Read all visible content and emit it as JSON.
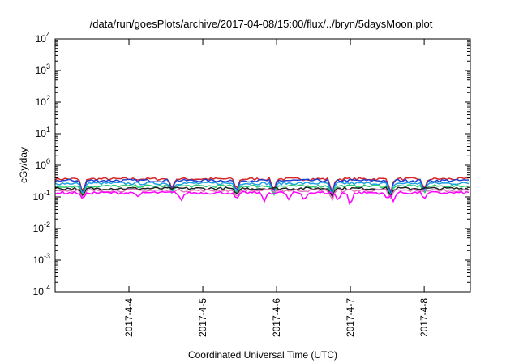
{
  "chart_data": {
    "type": "line",
    "title": "/data/run/goesPlots/archive/2017-04-08/15:00/flux/../bryn/5daysMoon.plot",
    "xlabel": "Coordinated Universal Time (UTC)",
    "ylabel": "cGy/day",
    "yscale": "log",
    "ylim": [
      0.0001,
      10000
    ],
    "y_ticks": [
      {
        "base": "10",
        "exp": "-4"
      },
      {
        "base": "10",
        "exp": "-3"
      },
      {
        "base": "10",
        "exp": "-2"
      },
      {
        "base": "10",
        "exp": "-1"
      },
      {
        "base": "10",
        "exp": "0"
      },
      {
        "base": "10",
        "exp": "1"
      },
      {
        "base": "10",
        "exp": "2"
      },
      {
        "base": "10",
        "exp": "3"
      },
      {
        "base": "10",
        "exp": "4"
      }
    ],
    "xlim": [
      "2017-04-03 00:00",
      "2017-04-08 15:00"
    ],
    "x_tick_labels": [
      "2017-4-4",
      "2017-4-5",
      "2017-4-6",
      "2017-4-7",
      "2017-4-8"
    ],
    "x_ticks": [
      "2017-04-04",
      "2017-04-05",
      "2017-04-06",
      "2017-04-07",
      "2017-04-08"
    ],
    "grid": false,
    "legend": "none",
    "series": [
      {
        "color": "#d62728",
        "baseline": 0.37,
        "dips": [
          {
            "x": "2017-04-03 09:00",
            "y": 0.1
          },
          {
            "x": "2017-04-04 14:00",
            "y": 0.18
          },
          {
            "x": "2017-04-05 11:00",
            "y": 0.14
          },
          {
            "x": "2017-04-05 23:00",
            "y": 0.13
          },
          {
            "x": "2017-04-06 18:00",
            "y": 0.1
          },
          {
            "x": "2017-04-07 13:00",
            "y": 0.11
          },
          {
            "x": "2017-04-08 00:00",
            "y": 0.15
          }
        ]
      },
      {
        "color": "#1f3fcf",
        "baseline": 0.33,
        "dips": [
          {
            "x": "2017-04-03 09:00",
            "y": 0.09
          },
          {
            "x": "2017-04-04 14:00",
            "y": 0.16
          },
          {
            "x": "2017-04-05 11:00",
            "y": 0.12
          },
          {
            "x": "2017-04-05 23:00",
            "y": 0.11
          },
          {
            "x": "2017-04-06 18:00",
            "y": 0.09
          },
          {
            "x": "2017-04-07 13:00",
            "y": 0.1
          },
          {
            "x": "2017-04-08 00:00",
            "y": 0.13
          }
        ]
      },
      {
        "color": "#1f9fe6",
        "baseline": 0.27,
        "dips": [
          {
            "x": "2017-04-03 09:00",
            "y": 0.09
          },
          {
            "x": "2017-04-04 14:00",
            "y": 0.14
          },
          {
            "x": "2017-04-05 11:00",
            "y": 0.11
          },
          {
            "x": "2017-04-05 23:00",
            "y": 0.1
          },
          {
            "x": "2017-04-06 18:00",
            "y": 0.08
          },
          {
            "x": "2017-04-07 13:00",
            "y": 0.09
          },
          {
            "x": "2017-04-08 00:00",
            "y": 0.12
          }
        ]
      },
      {
        "color": "#2ecc71",
        "baseline": 0.22,
        "dips": [
          {
            "x": "2017-04-03 09:00",
            "y": 0.09
          },
          {
            "x": "2017-04-04 14:00",
            "y": 0.13
          },
          {
            "x": "2017-04-05 11:00",
            "y": 0.11
          },
          {
            "x": "2017-04-05 23:00",
            "y": 0.1
          },
          {
            "x": "2017-04-06 18:00",
            "y": 0.09
          },
          {
            "x": "2017-04-07 13:00",
            "y": 0.09
          },
          {
            "x": "2017-04-08 00:00",
            "y": 0.12
          }
        ]
      },
      {
        "color": "#222222",
        "baseline": 0.185,
        "dips": [
          {
            "x": "2017-04-03 09:00",
            "y": 0.09
          },
          {
            "x": "2017-04-05 11:00",
            "y": 0.11
          },
          {
            "x": "2017-04-06 18:00",
            "y": 0.09
          },
          {
            "x": "2017-04-07 13:00",
            "y": 0.1
          }
        ]
      },
      {
        "color": "#e377c2",
        "baseline": 0.16,
        "dips": [
          {
            "x": "2017-04-03 09:00",
            "y": 0.08
          },
          {
            "x": "2017-04-05 11:00",
            "y": 0.09
          },
          {
            "x": "2017-04-06 18:00",
            "y": 0.07
          },
          {
            "x": "2017-04-07 13:00",
            "y": 0.08
          }
        ]
      },
      {
        "color": "#ff00ff",
        "baseline": 0.135,
        "dips": [
          {
            "x": "2017-04-03 09:00",
            "y": 0.08
          },
          {
            "x": "2017-04-04 03:00",
            "y": 0.1
          },
          {
            "x": "2017-04-04 17:00",
            "y": 0.07
          },
          {
            "x": "2017-04-05 11:00",
            "y": 0.08
          },
          {
            "x": "2017-04-05 20:00",
            "y": 0.07
          },
          {
            "x": "2017-04-06 04:00",
            "y": 0.08
          },
          {
            "x": "2017-04-06 09:00",
            "y": 0.07
          },
          {
            "x": "2017-04-06 20:00",
            "y": 0.07
          },
          {
            "x": "2017-04-07 00:00",
            "y": 0.04
          },
          {
            "x": "2017-04-07 12:00",
            "y": 0.08
          },
          {
            "x": "2017-04-07 14:00",
            "y": 0.07
          },
          {
            "x": "2017-04-08 00:00",
            "y": 0.08
          }
        ]
      }
    ]
  }
}
